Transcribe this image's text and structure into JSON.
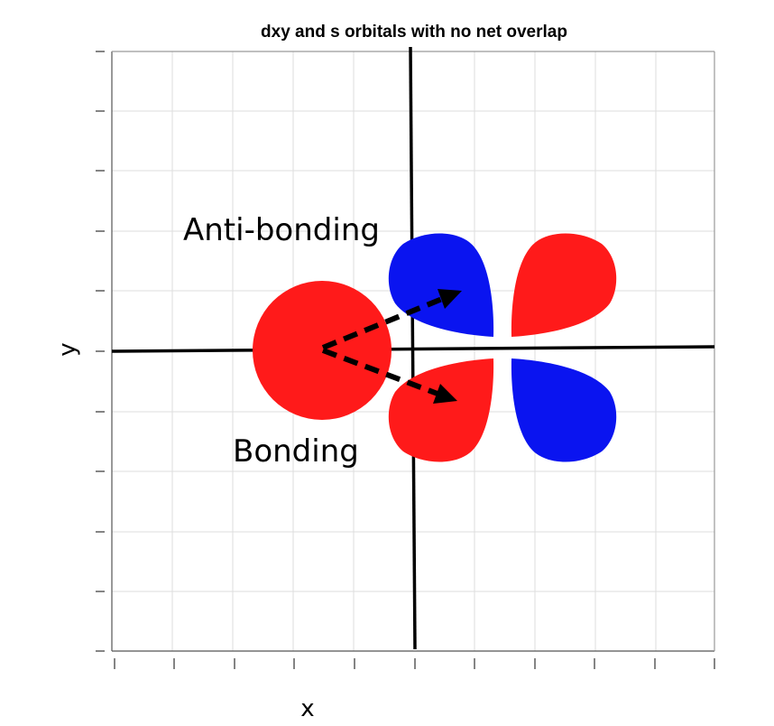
{
  "title": "dxy and s orbitals with no net overlap",
  "axes": {
    "xlabel": "x",
    "ylabel": "y",
    "grid": true
  },
  "annotations": {
    "antibonding": "Anti-bonding",
    "bonding": "Bonding"
  },
  "orbitals": {
    "s": {
      "color": "#ff1a1a"
    },
    "dxy": {
      "lobe_colors": {
        "upper_left": "#0a14f0",
        "upper_right": "#ff1a1a",
        "lower_left": "#ff1a1a",
        "lower_right": "#0a14f0"
      }
    }
  },
  "colors": {
    "positive_phase": "#ff1a1a",
    "negative_phase": "#0a14f0",
    "arrow": "#000000"
  }
}
